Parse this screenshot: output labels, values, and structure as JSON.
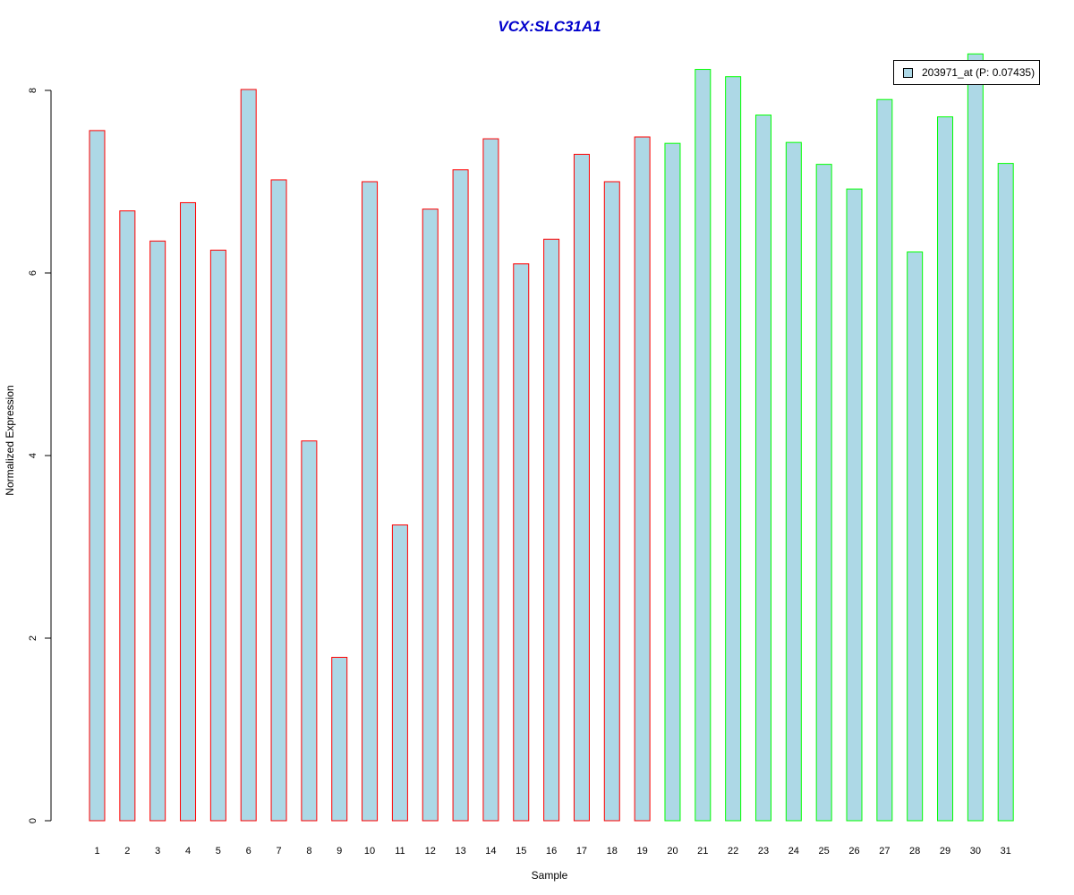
{
  "colors": {
    "bar_fill": "#add8e6",
    "group_a_border": "#ff0000",
    "group_b_border": "#00ff00",
    "title": "#0000cc"
  },
  "chart_data": {
    "type": "bar",
    "title": "VCX:SLC31A1",
    "xlabel": "Sample",
    "ylabel": "Normalized Expression",
    "ylim": [
      0,
      8
    ],
    "yticks": [
      "0",
      "2",
      "4",
      "6",
      "8"
    ],
    "categories": [
      "1",
      "2",
      "3",
      "4",
      "5",
      "6",
      "7",
      "8",
      "9",
      "10",
      "11",
      "12",
      "13",
      "14",
      "15",
      "16",
      "17",
      "18",
      "19",
      "20",
      "21",
      "22",
      "23",
      "24",
      "25",
      "26",
      "27",
      "28",
      "29",
      "30",
      "31"
    ],
    "series": [
      {
        "name": "203971_at (P: 0.07435)",
        "values": [
          7.56,
          6.68,
          6.35,
          6.77,
          6.25,
          8.01,
          7.02,
          4.16,
          1.79,
          7.0,
          3.24,
          6.7,
          7.13,
          7.47,
          6.1,
          6.37,
          7.3,
          7.0,
          7.49,
          7.42,
          8.23,
          8.15,
          7.73,
          7.43,
          7.19,
          6.92,
          7.9,
          6.23,
          7.71,
          8.4,
          7.2
        ]
      }
    ],
    "group_split_after": 19,
    "grid": false,
    "legend_position": "top-right"
  },
  "legend": {
    "label": "203971_at (P: 0.07435)"
  }
}
